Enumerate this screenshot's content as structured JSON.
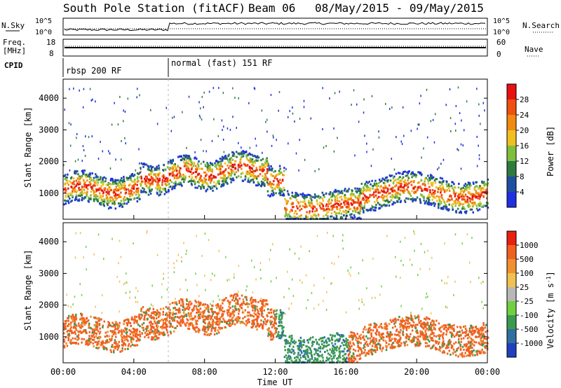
{
  "title": {
    "station": "South Pole Station (fitACF)",
    "beam": "Beam 06",
    "dates": "08/May/2015 - 09/May/2015"
  },
  "panels": {
    "nsky_label": "N.Sky",
    "nsearch_label": "N.Search",
    "freq_label_line1": "Freq.",
    "freq_label_line2": "[MHz]",
    "nave_label": "Nave",
    "cpid_label": "CPID",
    "nsky_ticks": [
      "10^5",
      "10^0"
    ],
    "nsearch_ticks": [
      "10^5",
      "10^0"
    ],
    "freq_ticks": [
      "18",
      "8"
    ],
    "nave_ticks": [
      "60",
      "0"
    ],
    "cpid_segments": [
      {
        "label": "rbsp 200 RF",
        "start_hour": 0
      },
      {
        "label": "normal (fast) 151 RF",
        "start_hour": 6
      }
    ]
  },
  "chart_data": [
    {
      "type": "heatmap",
      "name": "power",
      "ylabel": "Slant Range [km]",
      "xlabel": "",
      "ylim": [
        180,
        4600
      ],
      "yticks": [
        "4000",
        "3000",
        "2000",
        "1000"
      ],
      "colorbar": {
        "label": "Power [dB]",
        "ticks": [
          "28",
          "24",
          "20",
          "16",
          "12",
          "8",
          "4"
        ],
        "colors": [
          "#2030e0",
          "#1f4fa0",
          "#2f7a3f",
          "#7fbf3f",
          "#f0c020",
          "#f08a10",
          "#f05010",
          "#e81010"
        ]
      }
    },
    {
      "type": "heatmap",
      "name": "velocity",
      "ylabel": "Slant Range [km]",
      "xlabel": "Time UT",
      "ylim": [
        180,
        4600
      ],
      "yticks": [
        "4000",
        "3000",
        "2000",
        "1000"
      ],
      "xticks": [
        "00:00",
        "04:00",
        "08:00",
        "12:00",
        "16:00",
        "20:00",
        "00:00"
      ],
      "colorbar": {
        "label": "Velocity [m s",
        "label_sup": "-1",
        "label_end": "]",
        "ticks": [
          "1000",
          "500",
          "100",
          "25",
          "-25",
          "-100",
          "-500",
          "-1000"
        ],
        "colors": [
          "#2040c0",
          "#3070a0",
          "#3a9a50",
          "#70d040",
          "#b8b8b8",
          "#f0c050",
          "#f09030",
          "#f06020",
          "#e82010"
        ]
      }
    }
  ]
}
